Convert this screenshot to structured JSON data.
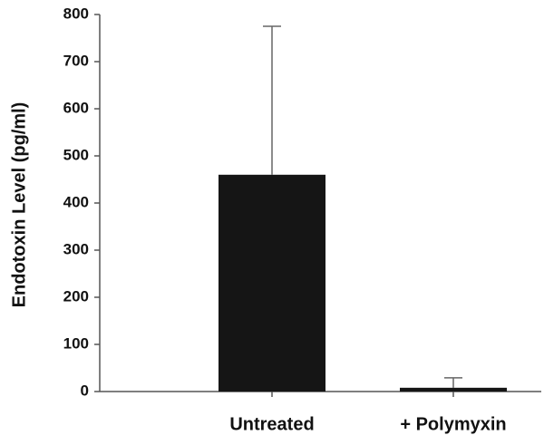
{
  "chart_data": {
    "type": "bar",
    "y_label": "Endotoxin Level (pg/ml)",
    "categories": [
      "Untreated",
      "+ Polymyxin"
    ],
    "values": [
      460,
      8
    ],
    "errors": [
      315,
      21
    ],
    "color": "#151515",
    "ylim": [
      0,
      800
    ],
    "yticks": [
      0,
      100,
      200,
      300,
      400,
      500,
      600,
      700,
      800
    ]
  }
}
